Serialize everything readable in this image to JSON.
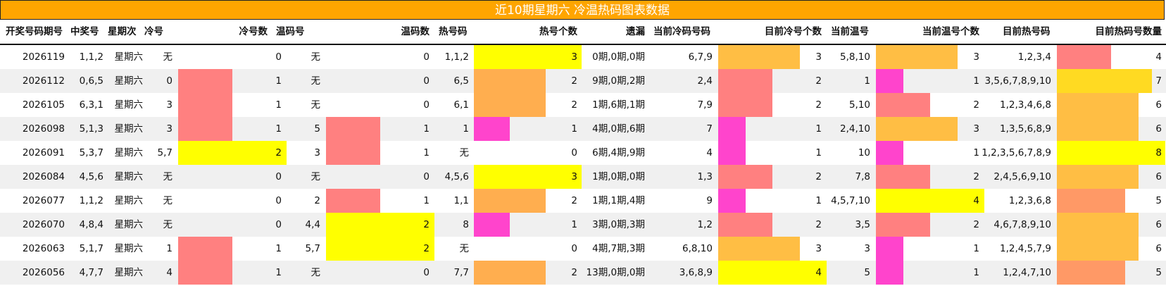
{
  "title": "近10期星期六 冷温热码图表数据",
  "headers": [
    "开奖号码期号",
    "中奖号",
    "星期次",
    "冷号",
    "冷号数",
    "温码号",
    "温码数",
    "热号码",
    "热号个数",
    "遗漏",
    "当前冷码号码",
    "目前冷号个数",
    "当前温号",
    "当前温号个数",
    "目前热号码",
    "目前热码号数量"
  ],
  "colors": {
    "pink": "#FF8080",
    "orange": "#FFAE4F",
    "yellow": "#FFFF00",
    "magenta": "#FF44CC",
    "orange2": "#FFBE44",
    "gold": "#FFDA22",
    "salmon": "#FF9966",
    "stripe": "#F0F0F0"
  },
  "rows": [
    {
      "issue": "2026119",
      "winning": "1,1,2",
      "weekday": "星期六",
      "cold": "无",
      "cold_count": 0,
      "warm": "无",
      "warm_count": 0,
      "hot": "1,1,2",
      "hot_count": 3,
      "miss": "0期,0期,0期",
      "cur_cold": "6,7,9",
      "cur_cold_count": 3,
      "cur_warm": "5,8,10",
      "cur_warm_count": 3,
      "cur_hot": "1,2,3,4",
      "cur_hot_count": 4
    },
    {
      "issue": "2026112",
      "winning": "0,6,5",
      "weekday": "星期六",
      "cold": "0",
      "cold_count": 1,
      "warm": "无",
      "warm_count": 0,
      "hot": "6,5",
      "hot_count": 2,
      "miss": "9期,0期,2期",
      "cur_cold": "2,4",
      "cur_cold_count": 2,
      "cur_warm": "1",
      "cur_warm_count": 1,
      "cur_hot": "3,5,6,7,8,9,10",
      "cur_hot_count": 7
    },
    {
      "issue": "2026105",
      "winning": "6,3,1",
      "weekday": "星期六",
      "cold": "3",
      "cold_count": 1,
      "warm": "无",
      "warm_count": 0,
      "hot": "6,1",
      "hot_count": 2,
      "miss": "1期,6期,1期",
      "cur_cold": "7,9",
      "cur_cold_count": 2,
      "cur_warm": "5,10",
      "cur_warm_count": 2,
      "cur_hot": "1,2,3,4,6,8",
      "cur_hot_count": 6
    },
    {
      "issue": "2026098",
      "winning": "5,1,3",
      "weekday": "星期六",
      "cold": "3",
      "cold_count": 1,
      "warm": "5",
      "warm_count": 1,
      "hot": "1",
      "hot_count": 1,
      "miss": "4期,0期,6期",
      "cur_cold": "7",
      "cur_cold_count": 1,
      "cur_warm": "2,4,10",
      "cur_warm_count": 3,
      "cur_hot": "1,3,5,6,8,9",
      "cur_hot_count": 6
    },
    {
      "issue": "2026091",
      "winning": "5,3,7",
      "weekday": "星期六",
      "cold": "5,7",
      "cold_count": 2,
      "warm": "3",
      "warm_count": 1,
      "hot": "无",
      "hot_count": 0,
      "miss": "6期,4期,9期",
      "cur_cold": "4",
      "cur_cold_count": 1,
      "cur_warm": "10",
      "cur_warm_count": 1,
      "cur_hot": "1,2,3,5,6,7,8,9",
      "cur_hot_count": 8
    },
    {
      "issue": "2026084",
      "winning": "4,5,6",
      "weekday": "星期六",
      "cold": "无",
      "cold_count": 0,
      "warm": "无",
      "warm_count": 0,
      "hot": "4,5,6",
      "hot_count": 3,
      "miss": "1期,0期,0期",
      "cur_cold": "1,3",
      "cur_cold_count": 2,
      "cur_warm": "7,8",
      "cur_warm_count": 2,
      "cur_hot": "2,4,5,6,9,10",
      "cur_hot_count": 6
    },
    {
      "issue": "2026077",
      "winning": "1,1,2",
      "weekday": "星期六",
      "cold": "无",
      "cold_count": 0,
      "warm": "2",
      "warm_count": 1,
      "hot": "1,1",
      "hot_count": 2,
      "miss": "1期,1期,4期",
      "cur_cold": "9",
      "cur_cold_count": 1,
      "cur_warm": "4,5,7,10",
      "cur_warm_count": 4,
      "cur_hot": "1,2,3,6,8",
      "cur_hot_count": 5
    },
    {
      "issue": "2026070",
      "winning": "4,8,4",
      "weekday": "星期六",
      "cold": "无",
      "cold_count": 0,
      "warm": "4,4",
      "warm_count": 2,
      "hot": "8",
      "hot_count": 1,
      "miss": "3期,0期,3期",
      "cur_cold": "1,2",
      "cur_cold_count": 2,
      "cur_warm": "3,5",
      "cur_warm_count": 2,
      "cur_hot": "4,6,7,8,9,10",
      "cur_hot_count": 6
    },
    {
      "issue": "2026063",
      "winning": "5,1,7",
      "weekday": "星期六",
      "cold": "1",
      "cold_count": 1,
      "warm": "5,7",
      "warm_count": 2,
      "hot": "无",
      "hot_count": 0,
      "miss": "4期,7期,3期",
      "cur_cold": "6,8,10",
      "cur_cold_count": 3,
      "cur_warm": "3",
      "cur_warm_count": 1,
      "cur_hot": "1,2,4,5,7,9",
      "cur_hot_count": 6
    },
    {
      "issue": "2026056",
      "winning": "4,7,7",
      "weekday": "星期六",
      "cold": "4",
      "cold_count": 1,
      "warm": "无",
      "warm_count": 0,
      "hot": "7,7",
      "hot_count": 2,
      "miss": "13期,0期,0期",
      "cur_cold": "3,6,8,9",
      "cur_cold_count": 4,
      "cur_warm": "5",
      "cur_warm_count": 1,
      "cur_hot": "1,2,4,7,10",
      "cur_hot_count": 5
    }
  ]
}
